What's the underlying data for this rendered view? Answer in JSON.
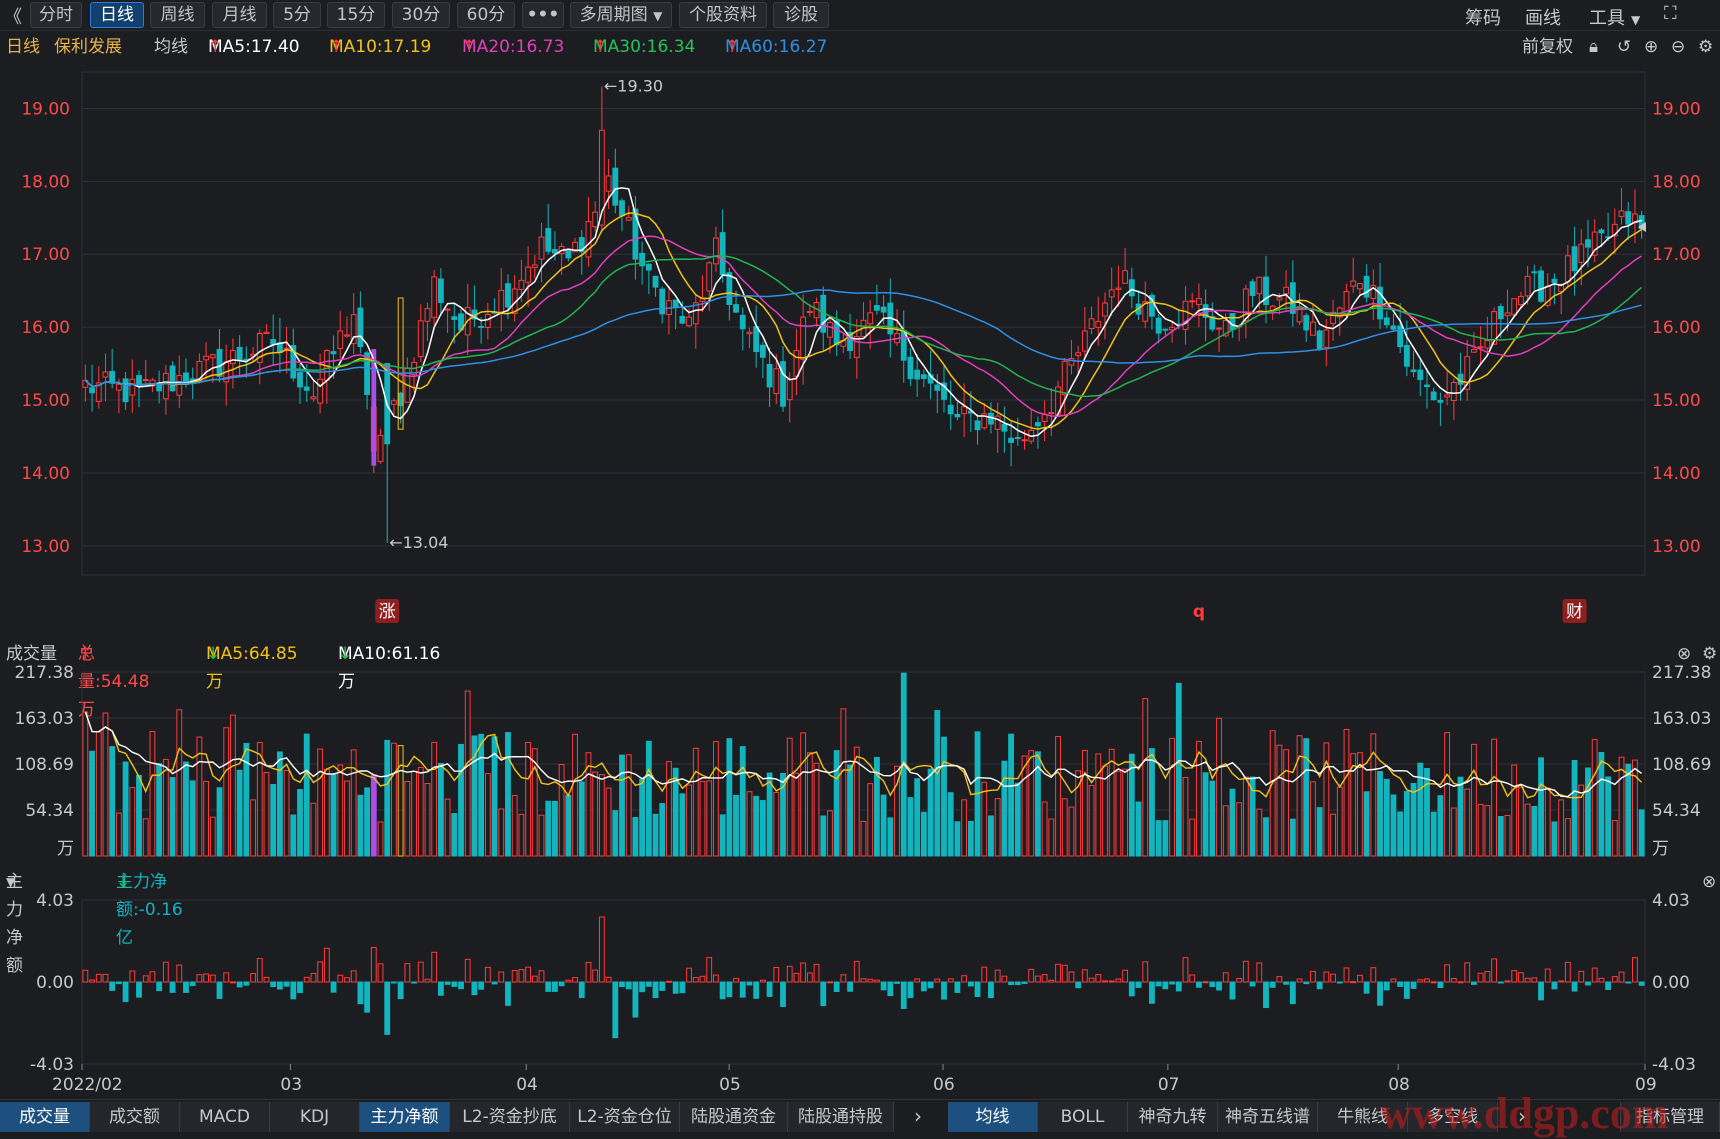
{
  "toolbar": {
    "back_icon": "chevron-double-left",
    "periods": [
      "分时",
      "日线",
      "周线",
      "月线",
      "5分",
      "15分",
      "30分",
      "60分"
    ],
    "active_period": "日线",
    "more_label": "•••",
    "multi_period_label": "多周期图",
    "profile_label": "个股资料",
    "diagnose_label": "诊股",
    "right": {
      "chips_label": "筹码",
      "draw_label": "画线",
      "tools_label": "工具"
    }
  },
  "infobar": {
    "period": "日线",
    "stock_name": "保利发展",
    "ma_label": "均线",
    "ma5": "MA5:17.40",
    "ma10": "MA10:17.19",
    "ma20": "MA20:16.73",
    "ma30": "MA30:16.34",
    "ma60": "MA60:16.27",
    "adjust_label": "前复权"
  },
  "colors": {
    "up": "#ff3b3b",
    "down": "#12b5be",
    "ma5": "#ffffff",
    "ma10": "#f2c318",
    "ma20": "#e23fbd",
    "ma30": "#21b450",
    "ma60": "#2d8fe8",
    "grid": "#2f3137",
    "bg": "#1c1d21"
  },
  "volume_bar": {
    "label": "成交量",
    "total": "总量:54.48万",
    "ma5": "MA5:64.85万",
    "ma10": "MA10:61.16万"
  },
  "flow_bar": {
    "label": "主力净额",
    "value": "主力净额:-0.16亿"
  },
  "bottom_tabs_left": [
    "成交量",
    "成交额",
    "MACD",
    "KDJ",
    "主力净额",
    "L2-资金抄底",
    "L2-资金仓位",
    "陆股通资金",
    "陆股通持股"
  ],
  "bottom_tabs_left_active": "成交量",
  "bottom_tabs_left_highlight": "主力净额",
  "bottom_tabs_right": [
    "均线",
    "BOLL",
    "神奇九转",
    "神奇五线谱",
    "牛熊线",
    "多空线"
  ],
  "bottom_tabs_right_active": "均线",
  "indicator_manage_label": "指标管理",
  "watermark": "www.ddgp.com",
  "chart_data": [
    {
      "type": "candlestick",
      "name": "price",
      "ylim": [
        12.6,
        19.5
      ],
      "yticks": [
        "19.00",
        "18.00",
        "17.00",
        "16.00",
        "15.00",
        "14.00",
        "13.00"
      ],
      "xticks": [
        "2022/02",
        "03",
        "04",
        "05",
        "06",
        "07",
        "08",
        "09"
      ],
      "high_annotation": "←19.30",
      "low_annotation": "←13.04",
      "markers": [
        {
          "day": 45,
          "label": "涨"
        },
        {
          "day": 166,
          "label": "q"
        },
        {
          "day": 222,
          "label": "财"
        }
      ],
      "anchors": [
        [
          0,
          15.2
        ],
        [
          8,
          15.1
        ],
        [
          14,
          15.3
        ],
        [
          20,
          15.5
        ],
        [
          28,
          15.8
        ],
        [
          34,
          15.1
        ],
        [
          40,
          16.2
        ],
        [
          43,
          14.3
        ],
        [
          47,
          15.1
        ],
        [
          52,
          16.6
        ],
        [
          56,
          16.0
        ],
        [
          63,
          16.5
        ],
        [
          68,
          17.1
        ],
        [
          72,
          16.9
        ],
        [
          76,
          17.6
        ],
        [
          78,
          18.0
        ],
        [
          84,
          16.6
        ],
        [
          90,
          16.0
        ],
        [
          94,
          17.0
        ],
        [
          98,
          15.9
        ],
        [
          104,
          15.1
        ],
        [
          108,
          16.3
        ],
        [
          112,
          15.8
        ],
        [
          118,
          16.1
        ],
        [
          124,
          15.4
        ],
        [
          130,
          14.7
        ],
        [
          135,
          14.8
        ],
        [
          139,
          14.4
        ],
        [
          144,
          15.0
        ],
        [
          149,
          15.8
        ],
        [
          154,
          16.7
        ],
        [
          160,
          16.1
        ],
        [
          166,
          16.3
        ],
        [
          170,
          15.9
        ],
        [
          174,
          16.5
        ],
        [
          180,
          16.3
        ],
        [
          184,
          15.8
        ],
        [
          190,
          16.7
        ],
        [
          194,
          16.2
        ],
        [
          198,
          15.3
        ],
        [
          202,
          15.0
        ],
        [
          207,
          15.5
        ],
        [
          212,
          16.4
        ],
        [
          218,
          16.6
        ],
        [
          224,
          17.0
        ],
        [
          230,
          17.5
        ],
        [
          232,
          17.35
        ]
      ],
      "ma5": {
        "label": "MA5",
        "value": 17.4
      },
      "ma10": {
        "label": "MA10",
        "value": 17.19
      },
      "ma20": {
        "label": "MA20",
        "value": 16.73
      },
      "ma30": {
        "label": "MA30",
        "value": 16.34
      },
      "ma60": {
        "label": "MA60",
        "value": 16.27
      }
    },
    {
      "type": "bar",
      "name": "volume",
      "unit": "万",
      "ylim": [
        0,
        217.38
      ],
      "yticks": [
        "217.38",
        "163.03",
        "108.69",
        "54.34",
        "万"
      ],
      "ma5_last": 64.85,
      "ma10_last": 61.16,
      "last_value": 54.48
    },
    {
      "type": "bar",
      "name": "main_net_flow",
      "unit": "亿",
      "ylim": [
        -4.03,
        4.03
      ],
      "yticks": [
        "4.03",
        "0.00",
        "-4.03"
      ],
      "last_value": -0.16
    }
  ]
}
